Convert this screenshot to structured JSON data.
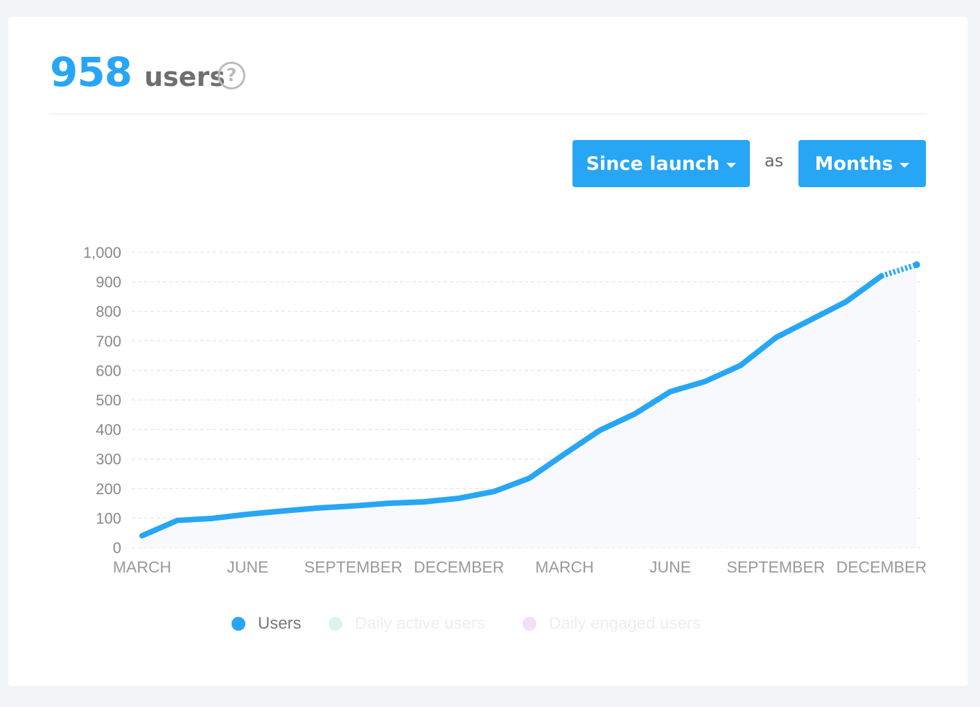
{
  "header": {
    "count": "958",
    "unit": "users",
    "help_icon": "question-circle-icon"
  },
  "controls": {
    "range_label": "Since launch",
    "as_label": "as",
    "interval_label": "Months"
  },
  "colors": {
    "accent": "#27a6f5",
    "daily_active": "#d9f5ee",
    "daily_engaged": "#f1e1f7"
  },
  "legend": [
    {
      "label": "Users",
      "color": "#27a6f5",
      "active": true
    },
    {
      "label": "Daily active users",
      "color": "#d9f5ee",
      "active": false
    },
    {
      "label": "Daily engaged users",
      "color": "#f1e1f7",
      "active": false
    }
  ],
  "chart_data": {
    "type": "line",
    "title": "",
    "xlabel": "",
    "ylabel": "",
    "ylim": [
      0,
      1000
    ],
    "yticks": [
      "0",
      "100",
      "200",
      "300",
      "400",
      "500",
      "600",
      "700",
      "800",
      "900",
      "1,000"
    ],
    "ytick_values": [
      0,
      100,
      200,
      300,
      400,
      500,
      600,
      700,
      800,
      900,
      1000
    ],
    "xtick_labels": [
      {
        "label": "MARCH",
        "index": 0
      },
      {
        "label": "JUNE",
        "index": 3
      },
      {
        "label": "SEPTEMBER",
        "index": 6
      },
      {
        "label": "DECEMBER",
        "index": 9
      },
      {
        "label": "MARCH",
        "index": 12
      },
      {
        "label": "JUNE",
        "index": 15
      },
      {
        "label": "SEPTEMBER",
        "index": 18
      },
      {
        "label": "DECEMBER",
        "index": 21
      }
    ],
    "grid": true,
    "legend_position": "bottom",
    "series": [
      {
        "name": "Users",
        "values": [
          40,
          92,
          99,
          113,
          124,
          134,
          141,
          150,
          155,
          167,
          190,
          235,
          317,
          397,
          453,
          528,
          563,
          617,
          711,
          772,
          833,
          920,
          958
        ],
        "projected_from_index": 21
      }
    ]
  }
}
